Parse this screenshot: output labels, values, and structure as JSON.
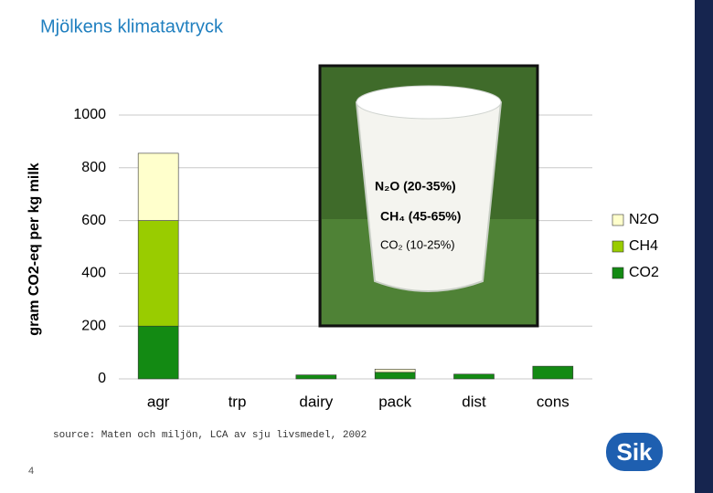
{
  "chart_data": {
    "type": "stacked-bar",
    "title": "Mjölkens klimatavtryck",
    "y_label": "gram CO2-eq per kg milk",
    "categories": [
      "agr",
      "trp",
      "dairy",
      "pack",
      "dist",
      "cons"
    ],
    "series": [
      {
        "name": "CO2",
        "color": "#138a13",
        "values": [
          200,
          0,
          15,
          25,
          18,
          48
        ]
      },
      {
        "name": "CH4",
        "color": "#99cc00",
        "values": [
          400,
          0,
          0,
          0,
          0,
          0
        ]
      },
      {
        "name": "N2O",
        "color": "#ffffcc",
        "values": [
          255,
          0,
          0,
          12,
          0,
          0
        ]
      }
    ],
    "ylim": [
      0,
      1000
    ],
    "yticks": [
      0,
      200,
      400,
      600,
      800,
      1000
    ],
    "grid": true,
    "legend": "right",
    "annotations": [
      "N₂O (20-35%)",
      "CH₄ (45-65%)",
      "CO₂ (10-25%)"
    ]
  },
  "source": "source: Maten och miljön, LCA av sju livsmedel, 2002",
  "page_number": "4",
  "logo": "Sik"
}
